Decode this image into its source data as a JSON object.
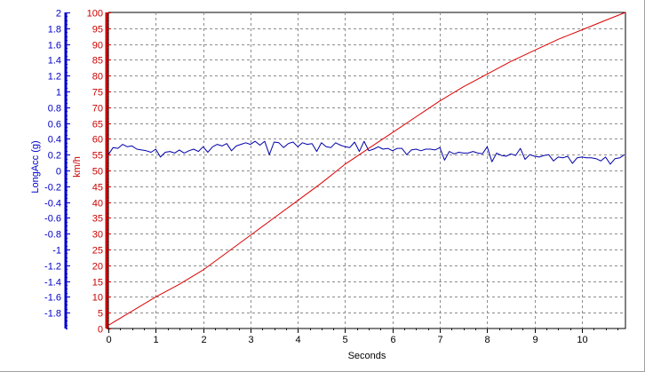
{
  "chart_data": {
    "type": "line",
    "x_axis": {
      "label": "Seconds",
      "range": [
        0,
        10.92
      ],
      "ticks": [
        0,
        1,
        2,
        3,
        4,
        5,
        6,
        7,
        8,
        9,
        10
      ]
    },
    "y_left_axis": {
      "label": "LongAcc (g)",
      "color": "#0000CC",
      "range": [
        -2,
        2
      ],
      "ticks": [
        -1.8,
        -1.6,
        -1.4,
        -1.2,
        -1,
        -0.8,
        -0.6,
        -0.4,
        -0.2,
        0,
        0.2,
        0.4,
        0.6,
        0.8,
        1,
        1.2,
        1.4,
        1.6,
        1.8,
        2
      ]
    },
    "y_right_axis": {
      "label": "km/h",
      "color": "#CC0000",
      "range": [
        0,
        100
      ],
      "ticks": [
        0,
        5,
        10,
        15,
        20,
        25,
        30,
        35,
        40,
        45,
        50,
        55,
        60,
        65,
        70,
        75,
        80,
        85,
        90,
        95,
        100
      ]
    },
    "grid": true,
    "series": [
      {
        "axis": "right",
        "color": "#DD0000",
        "x": [
          0,
          0.5,
          1,
          1.5,
          2,
          2.5,
          3,
          3.5,
          4,
          4.5,
          5,
          5.5,
          6,
          6.5,
          7,
          7.5,
          8,
          8.5,
          9,
          9.5,
          10,
          10.5,
          10.92
        ],
        "y": [
          1,
          5.5,
          10,
          14,
          18.5,
          24,
          29.5,
          35,
          40.5,
          46,
          52,
          57,
          62,
          67,
          72,
          76.5,
          80.5,
          84.5,
          88,
          91.5,
          94.5,
          97.5,
          100
        ]
      },
      {
        "axis": "left",
        "color": "#0000AA",
        "x": [
          0,
          0.1,
          0.2,
          0.3,
          0.4,
          0.5,
          0.6,
          0.7,
          0.8,
          0.9,
          1,
          1.1,
          1.2,
          1.3,
          1.4,
          1.5,
          1.6,
          1.7,
          1.8,
          1.9,
          2,
          2.1,
          2.2,
          2.3,
          2.4,
          2.5,
          2.6,
          2.7,
          2.8,
          2.9,
          3,
          3.1,
          3.2,
          3.3,
          3.4,
          3.5,
          3.6,
          3.7,
          3.8,
          3.9,
          4,
          4.1,
          4.2,
          4.3,
          4.4,
          4.5,
          4.6,
          4.7,
          4.8,
          4.9,
          5,
          5.1,
          5.2,
          5.3,
          5.4,
          5.5,
          5.6,
          5.7,
          5.8,
          5.9,
          6,
          6.1,
          6.2,
          6.3,
          6.4,
          6.5,
          6.6,
          6.7,
          6.8,
          6.9,
          7,
          7.1,
          7.2,
          7.3,
          7.4,
          7.5,
          7.6,
          7.7,
          7.8,
          7.9,
          8,
          8.1,
          8.2,
          8.3,
          8.4,
          8.5,
          8.6,
          8.7,
          8.8,
          8.9,
          9,
          9.1,
          9.2,
          9.3,
          9.4,
          9.5,
          9.6,
          9.7,
          9.8,
          9.9,
          10,
          10.1,
          10.2,
          10.3,
          10.4,
          10.5,
          10.6,
          10.7,
          10.8,
          10.9
        ],
        "y": [
          0.2,
          0.29,
          0.28,
          0.33,
          0.3,
          0.31,
          0.27,
          0.26,
          0.25,
          0.23,
          0.27,
          0.17,
          0.23,
          0.24,
          0.22,
          0.26,
          0.22,
          0.25,
          0.27,
          0.24,
          0.3,
          0.23,
          0.3,
          0.33,
          0.31,
          0.34,
          0.25,
          0.31,
          0.33,
          0.35,
          0.33,
          0.37,
          0.32,
          0.37,
          0.2,
          0.36,
          0.35,
          0.29,
          0.34,
          0.36,
          0.3,
          0.35,
          0.33,
          0.34,
          0.24,
          0.35,
          0.3,
          0.29,
          0.35,
          0.32,
          0.3,
          0.29,
          0.36,
          0.24,
          0.37,
          0.25,
          0.27,
          0.3,
          0.27,
          0.28,
          0.25,
          0.28,
          0.28,
          0.2,
          0.26,
          0.27,
          0.25,
          0.27,
          0.27,
          0.26,
          0.29,
          0.13,
          0.24,
          0.21,
          0.23,
          0.22,
          0.22,
          0.24,
          0.22,
          0.21,
          0.3,
          0.11,
          0.22,
          0.19,
          0.18,
          0.21,
          0.19,
          0.28,
          0.14,
          0.2,
          0.18,
          0.17,
          0.19,
          0.2,
          0.12,
          0.17,
          0.16,
          0.18,
          0.09,
          0.16,
          0.17,
          0.16,
          0.16,
          0.15,
          0.12,
          0.17,
          0.08,
          0.15,
          0.16,
          0.2
        ]
      }
    ]
  }
}
